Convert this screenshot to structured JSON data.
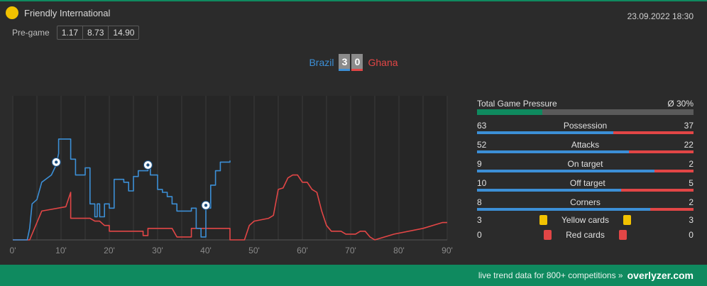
{
  "competition": "Friendly International",
  "datetime": "23.09.2022 18:30",
  "pregame": {
    "label": "Pre-game",
    "odds": [
      "1.17",
      "8.73",
      "14.90"
    ]
  },
  "match": {
    "home": "Brazil",
    "away": "Ghana",
    "home_score": "3",
    "away_score": "0"
  },
  "colors": {
    "home": "#3c8fd6",
    "away": "#e24646",
    "accent": "#0f8a5f",
    "yellow": "#f2c200"
  },
  "stats": {
    "pressure": {
      "label": "Total Game Pressure",
      "value": "Ø 30%",
      "fraction": 0.3
    },
    "rows": [
      {
        "home": "63",
        "label": "Possession",
        "away": "37"
      },
      {
        "home": "52",
        "label": "Attacks",
        "away": "22"
      },
      {
        "home": "9",
        "label": "On target",
        "away": "2"
      },
      {
        "home": "10",
        "label": "Off target",
        "away": "5"
      },
      {
        "home": "8",
        "label": "Corners",
        "away": "2"
      }
    ],
    "cards": [
      {
        "home": "3",
        "label": "Yellow cards",
        "away": "3",
        "icon": "yellow-card-icon"
      },
      {
        "home": "0",
        "label": "Red cards",
        "away": "0",
        "icon": "red-card-icon"
      }
    ]
  },
  "footer": {
    "text": "live trend data for 800+ competitions »",
    "brand": "overlyzer.com"
  },
  "chart_data": {
    "type": "line",
    "xlabel": "",
    "ylabel": "",
    "xlim": [
      0,
      90
    ],
    "ylim": [
      0,
      100
    ],
    "x_ticks": [
      "0'",
      "10'",
      "20'",
      "30'",
      "40'",
      "50'",
      "60'",
      "70'",
      "80'",
      "90'"
    ],
    "grid": true,
    "series": [
      {
        "name": "Brazil",
        "points": [
          [
            0,
            0
          ],
          [
            3,
            0
          ],
          [
            3.5,
            8
          ],
          [
            4,
            25
          ],
          [
            5,
            28
          ],
          [
            6,
            40
          ],
          [
            8,
            45
          ],
          [
            9,
            52
          ],
          [
            9.5,
            60
          ],
          [
            9.5,
            70
          ],
          [
            10,
            70
          ],
          [
            10,
            70
          ],
          [
            10.5,
            70
          ],
          [
            10.5,
            70
          ],
          [
            11,
            70
          ],
          [
            11,
            70
          ],
          [
            11.5,
            70
          ],
          [
            11.5,
            70
          ],
          [
            12,
            70
          ],
          [
            12,
            70
          ],
          [
            10,
            70
          ],
          [
            10.3,
            70
          ],
          [
            10.3,
            70
          ],
          [
            10.5,
            70
          ],
          [
            10.5,
            70
          ],
          [
            11,
            70
          ],
          [
            11,
            70
          ],
          [
            11.5,
            70
          ],
          [
            11.5,
            70
          ],
          [
            12,
            70
          ],
          [
            12,
            70
          ],
          [
            12,
            70
          ],
          [
            12,
            70
          ],
          [
            12,
            70
          ],
          [
            12,
            70
          ],
          [
            12,
            70
          ],
          [
            12,
            70
          ],
          [
            12,
            70
          ],
          [
            12,
            70
          ],
          [
            12,
            70
          ],
          [
            12,
            70
          ],
          [
            12,
            70
          ],
          [
            12,
            70
          ],
          [
            12,
            70
          ],
          [
            12,
            70
          ],
          [
            12,
            70
          ],
          [
            12,
            70
          ],
          [
            12,
            70
          ],
          [
            12,
            70
          ],
          [
            12,
            70
          ],
          [
            12,
            70
          ],
          [
            12,
            70
          ],
          [
            12,
            70
          ],
          [
            12,
            70
          ],
          [
            12,
            70
          ],
          [
            12,
            70
          ],
          [
            12,
            70
          ],
          [
            12,
            70
          ],
          [
            12,
            70
          ],
          [
            12,
            56
          ],
          [
            13,
            56
          ],
          [
            13,
            45
          ],
          [
            15,
            45
          ],
          [
            15,
            50
          ],
          [
            16,
            50
          ],
          [
            16,
            25
          ],
          [
            17,
            25
          ],
          [
            17,
            16
          ],
          [
            17.5,
            16
          ],
          [
            17.5,
            25
          ],
          [
            18,
            25
          ],
          [
            18,
            16
          ],
          [
            19,
            16
          ],
          [
            19,
            25
          ],
          [
            20,
            25
          ],
          [
            20,
            22
          ],
          [
            21,
            22
          ],
          [
            21,
            42
          ],
          [
            23,
            42
          ],
          [
            23,
            40
          ],
          [
            24,
            40
          ],
          [
            24,
            34
          ],
          [
            25,
            34
          ],
          [
            25,
            44
          ],
          [
            26,
            44
          ],
          [
            26,
            48
          ],
          [
            28,
            48
          ],
          [
            28,
            50
          ],
          [
            28.5,
            50
          ],
          [
            28.5,
            45
          ],
          [
            30,
            45
          ],
          [
            30,
            35
          ],
          [
            31,
            35
          ],
          [
            31,
            33
          ],
          [
            32,
            33
          ],
          [
            32,
            30
          ],
          [
            33,
            30
          ],
          [
            33,
            25
          ],
          [
            34,
            25
          ],
          [
            34,
            20
          ],
          [
            37,
            20
          ],
          [
            37,
            22
          ],
          [
            38,
            22
          ],
          [
            38,
            8
          ],
          [
            39,
            8
          ],
          [
            39,
            2
          ],
          [
            40,
            2
          ],
          [
            40,
            22
          ],
          [
            41,
            22
          ],
          [
            41,
            38
          ],
          [
            42,
            38
          ],
          [
            42,
            48
          ],
          [
            43,
            48
          ],
          [
            43,
            54
          ],
          [
            45,
            54
          ],
          [
            45,
            55
          ]
        ],
        "goals_at": [
          9,
          28,
          40
        ]
      },
      {
        "name": "Ghana",
        "points": [
          [
            0,
            0
          ],
          [
            3.5,
            0
          ],
          [
            6,
            20
          ],
          [
            11,
            23
          ],
          [
            12,
            33
          ],
          [
            12,
            15
          ],
          [
            16,
            15
          ],
          [
            17,
            13
          ],
          [
            18,
            13
          ],
          [
            19,
            10
          ],
          [
            20,
            10
          ],
          [
            20,
            6
          ],
          [
            27,
            6
          ],
          [
            27,
            3
          ],
          [
            28,
            3
          ],
          [
            28,
            8
          ],
          [
            33,
            8
          ],
          [
            34,
            2
          ],
          [
            37,
            2
          ],
          [
            37,
            8
          ],
          [
            42,
            8
          ],
          [
            45,
            8
          ],
          [
            45,
            0
          ],
          [
            48,
            0
          ],
          [
            49,
            10
          ],
          [
            50,
            13
          ],
          [
            53,
            15
          ],
          [
            54,
            17
          ],
          [
            55,
            35
          ],
          [
            56,
            36
          ],
          [
            57,
            43
          ],
          [
            58,
            45
          ],
          [
            59,
            45
          ],
          [
            60,
            40
          ],
          [
            61,
            40
          ],
          [
            62,
            35
          ],
          [
            63,
            33
          ],
          [
            64,
            20
          ],
          [
            65,
            10
          ],
          [
            66,
            6
          ],
          [
            68,
            6
          ],
          [
            69,
            4
          ],
          [
            71,
            4
          ],
          [
            72,
            6
          ],
          [
            73,
            6
          ],
          [
            74,
            2
          ],
          [
            75,
            0
          ],
          [
            79,
            4
          ],
          [
            85,
            8
          ],
          [
            89,
            12
          ],
          [
            90,
            12
          ]
        ]
      }
    ]
  }
}
